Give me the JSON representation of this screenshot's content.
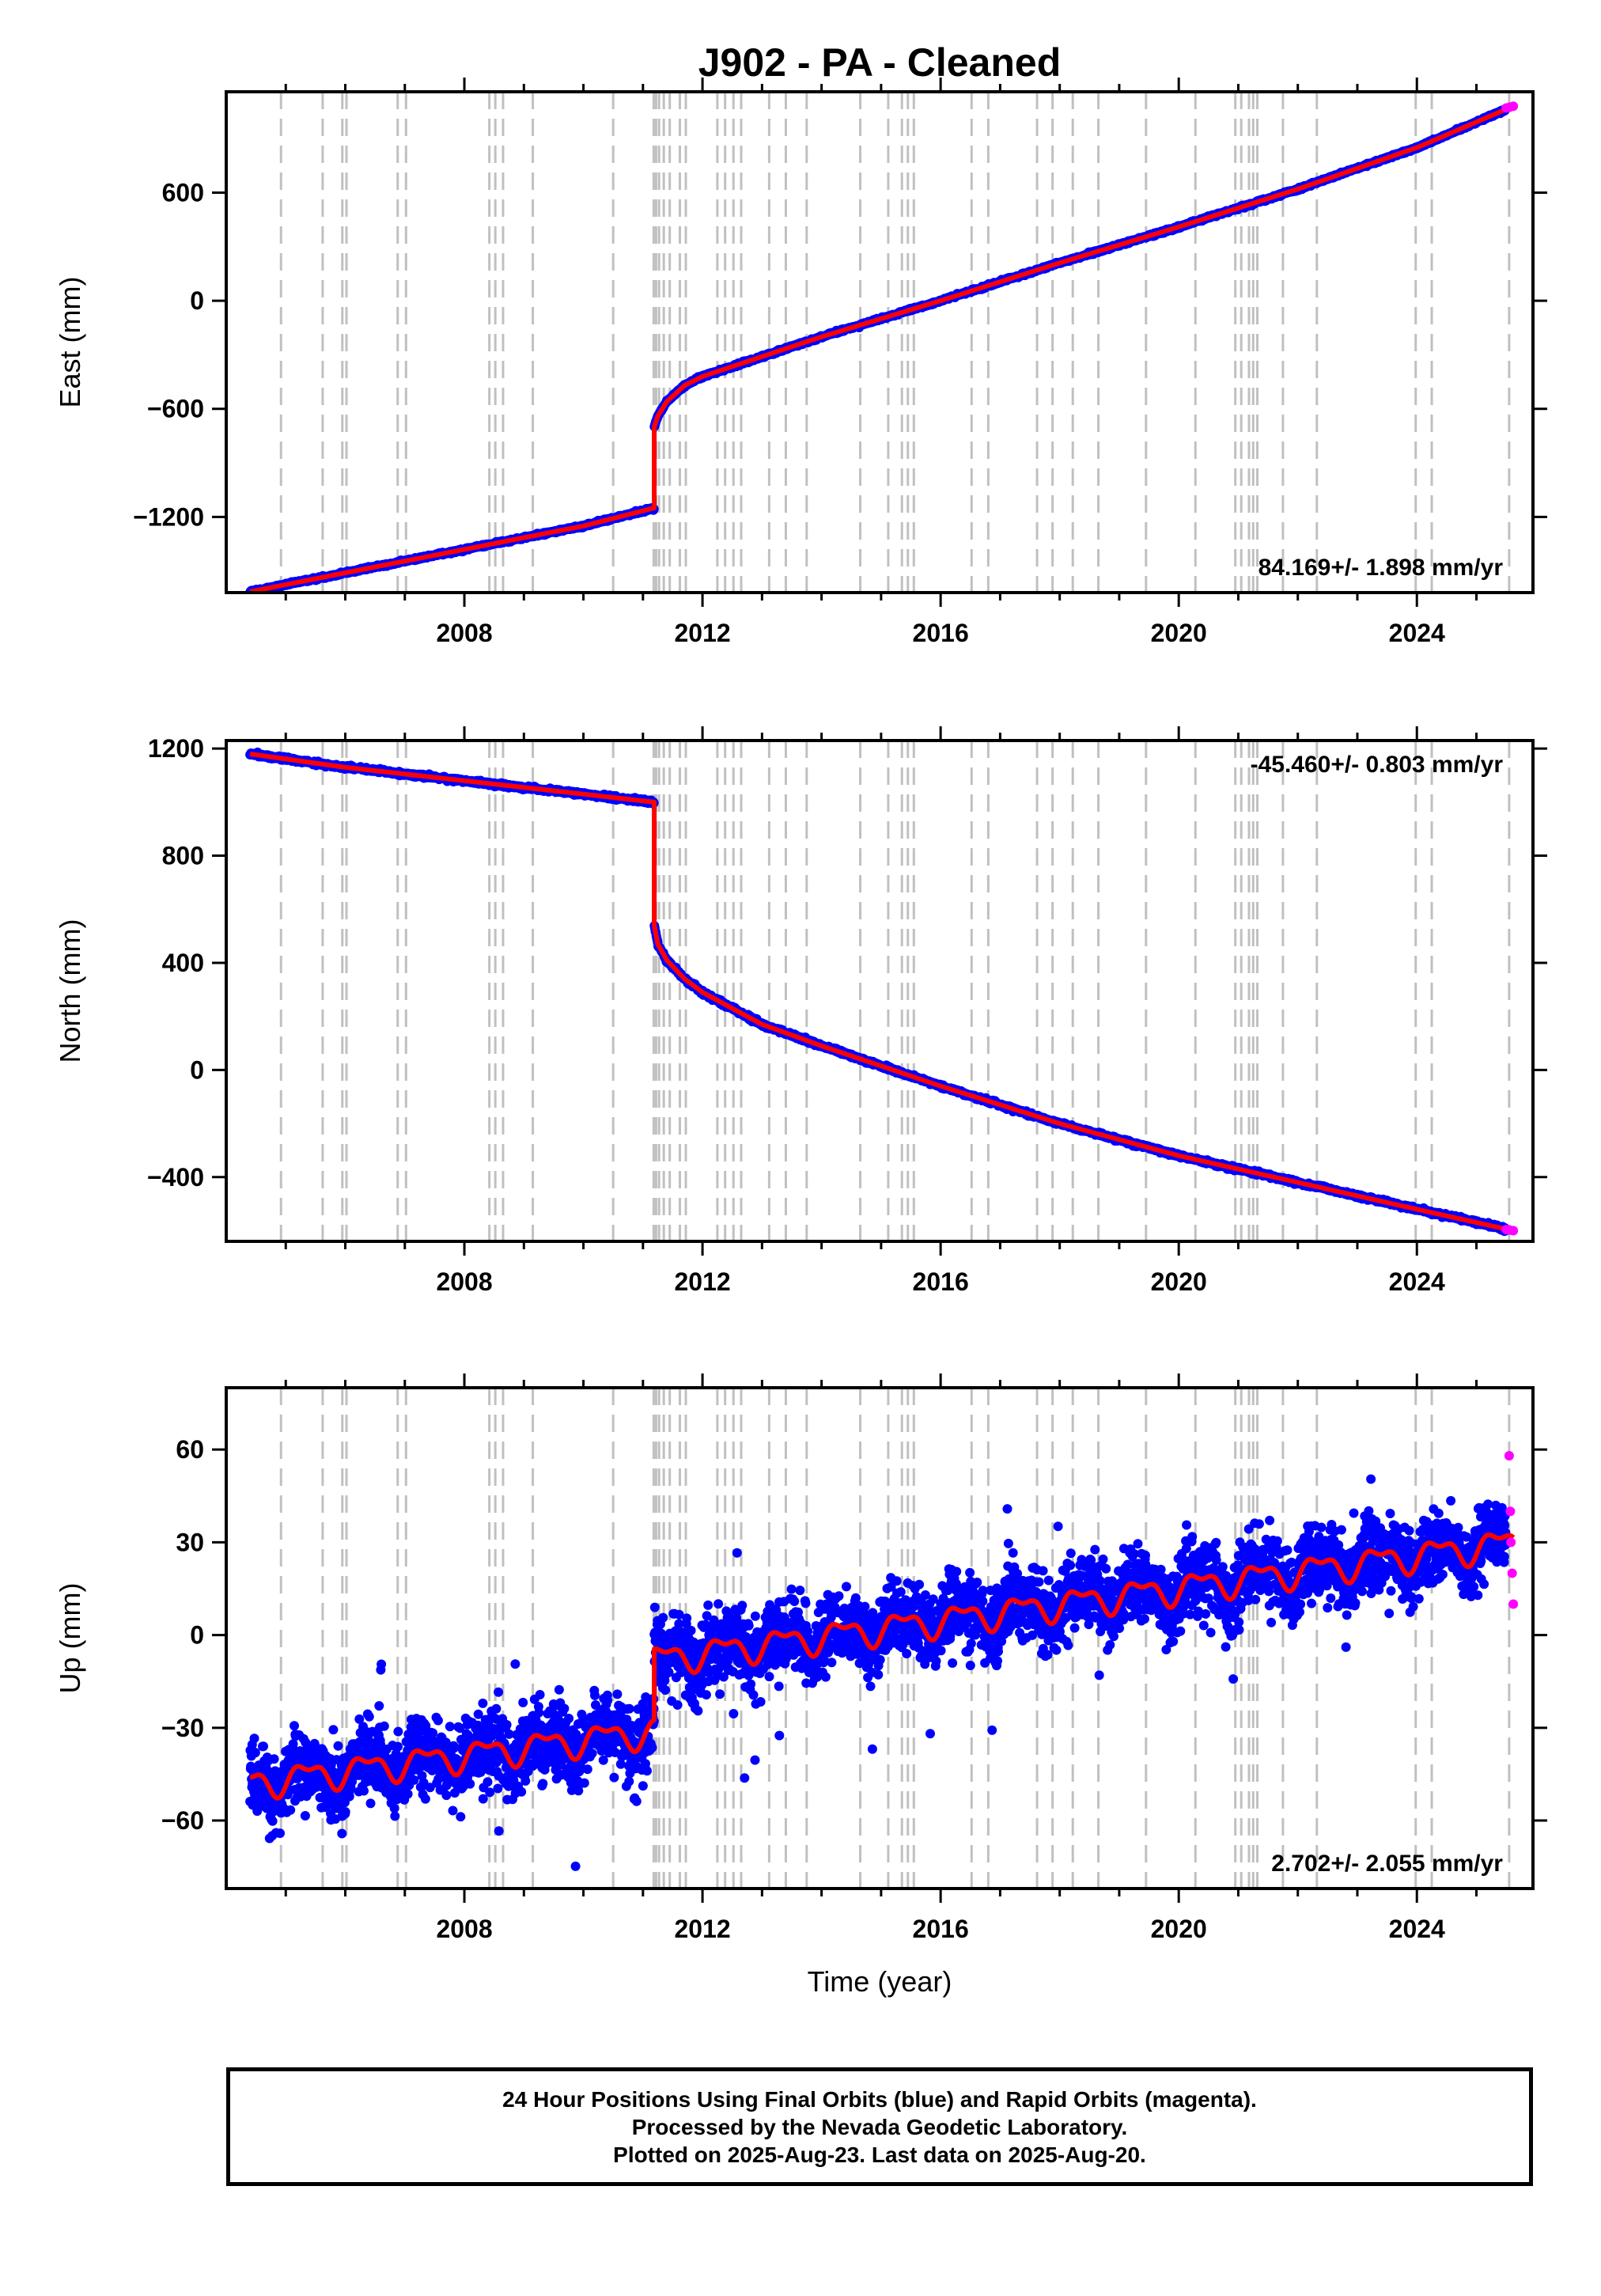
{
  "title": "J902  - PA - Cleaned",
  "footer": {
    "line1": "24 Hour Positions Using Final Orbits (blue) and Rapid Orbits (magenta).",
    "line2": "Processed by the Nevada Geodetic Laboratory.",
    "line3": "Plotted on 2025-Aug-23. Last data on 2025-Aug-20."
  },
  "colors": {
    "final": "#0000ff",
    "rapid": "#ff00ff",
    "model": "#ff0000",
    "steps": "#c0c0c0",
    "axis": "#000000"
  },
  "step_epochs": [
    2004.92,
    2005.62,
    2005.95,
    2006.02,
    2006.88,
    2007.02,
    2008.42,
    2008.52,
    2008.65,
    2009.15,
    2010.5,
    2011.18,
    2011.22,
    2011.27,
    2011.35,
    2011.45,
    2011.62,
    2011.72,
    2012.25,
    2012.38,
    2012.52,
    2012.65,
    2013.12,
    2013.4,
    2013.75,
    2014.65,
    2015.12,
    2015.35,
    2015.45,
    2015.55,
    2016.52,
    2016.8,
    2017.62,
    2017.88,
    2018.22,
    2018.65,
    2019.45,
    2020.28,
    2020.95,
    2021.05,
    2021.18,
    2021.25,
    2021.32,
    2021.75,
    2022.32,
    2023.98,
    2024.25,
    2025.55
  ],
  "chart_data": [
    {
      "type": "scatter",
      "xlabel": "",
      "ylabel": "East (mm)",
      "xlim": [
        2004.0,
        2025.95
      ],
      "ylim": [
        -1620,
        1160
      ],
      "xticks": [
        2008,
        2012,
        2016,
        2020,
        2024
      ],
      "yticks": [
        -1200,
        -600,
        0,
        600
      ],
      "rate_label": "84.169+/- 1.898 mm/yr",
      "rate_position": "bottom-right",
      "earthquake_epoch": 2011.19,
      "series": [
        {
          "name": "model",
          "x": [
            2004.4,
            2006,
            2008,
            2010,
            2011.19,
            2011.19,
            2011.25,
            2011.4,
            2011.7,
            2012,
            2013,
            2014,
            2016,
            2018,
            2020,
            2022,
            2024,
            2025.62
          ],
          "y": [
            -1615,
            -1510,
            -1380,
            -1250,
            -1150,
            -700,
            -640,
            -560,
            -470,
            -420,
            -310,
            -200,
            0,
            210,
            410,
            620,
            850,
            1080
          ]
        },
        {
          "name": "rapid",
          "x": [
            2025.5,
            2025.56,
            2025.62
          ],
          "y": [
            1070,
            1075,
            1080
          ]
        }
      ]
    },
    {
      "type": "scatter",
      "xlabel": "",
      "ylabel": "North (mm)",
      "xlim": [
        2004.0,
        2025.95
      ],
      "ylim": [
        -640,
        1230
      ],
      "xticks": [
        2008,
        2012,
        2016,
        2020,
        2024
      ],
      "yticks": [
        -400,
        0,
        400,
        800,
        1200
      ],
      "rate_label": "-45.460+/- 0.803 mm/yr",
      "rate_position": "top-right",
      "earthquake_epoch": 2011.19,
      "series": [
        {
          "name": "model",
          "x": [
            2004.4,
            2006,
            2008,
            2010,
            2011.19,
            2011.19,
            2011.25,
            2011.4,
            2011.7,
            2012,
            2013,
            2014,
            2016,
            2018,
            2020,
            2022,
            2024,
            2025.62
          ],
          "y": [
            1180,
            1130,
            1080,
            1030,
            1000,
            540,
            470,
            410,
            340,
            290,
            170,
            90,
            -60,
            -200,
            -320,
            -420,
            -520,
            -600
          ]
        },
        {
          "name": "rapid",
          "x": [
            2025.5,
            2025.56,
            2025.62
          ],
          "y": [
            -596,
            -598,
            -600
          ]
        }
      ]
    },
    {
      "type": "scatter",
      "xlabel": "Time (year)",
      "ylabel": "Up (mm)",
      "xlim": [
        2004.0,
        2025.95
      ],
      "ylim": [
        -82,
        80
      ],
      "xticks": [
        2008,
        2012,
        2016,
        2020,
        2024
      ],
      "yticks": [
        -60,
        -30,
        0,
        30,
        60
      ],
      "rate_label": "2.702+/- 2.055 mm/yr",
      "rate_position": "bottom-right",
      "earthquake_epoch": 2011.19,
      "trend_segments": [
        {
          "x0": 2004.4,
          "x1": 2011.19,
          "y0": -48,
          "y1": -31
        },
        {
          "x0": 2011.19,
          "x1": 2025.62,
          "y0": -8,
          "y1": 30
        }
      ],
      "seasonal_amplitude_mm": 4,
      "scatter_sigma_mm": 8,
      "series": [
        {
          "name": "rapid",
          "x": [
            2025.55,
            2025.57,
            2025.58,
            2025.6,
            2025.62
          ],
          "y": [
            58,
            40,
            30,
            20,
            10
          ]
        }
      ]
    }
  ]
}
